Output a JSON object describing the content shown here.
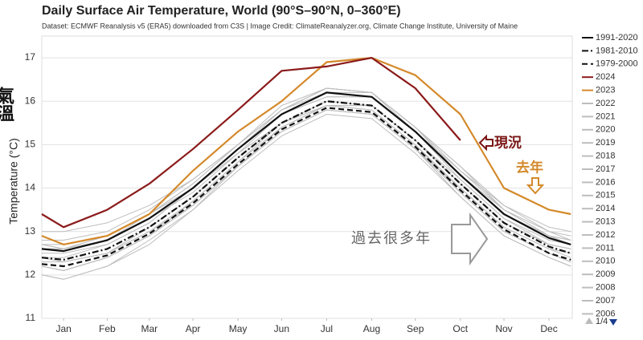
{
  "chart_data": {
    "type": "line",
    "title": "Daily Surface Air Temperature, World (90°S–90°N, 0–360°E)",
    "subtitle": "Dataset: ECMWF Reanalysis v5 (ERA5) downloaded from C3S | Image Credit: ClimateReanalyzer.org, Climate Change Institute, University of Maine",
    "y_label": "Temperature (°C)",
    "side_label": "氣溫",
    "annotations": [
      "現況",
      "去年",
      "過去很多年"
    ],
    "legend_page": "1/4",
    "legend": "right",
    "grid": true,
    "xlim": [
      1,
      366
    ],
    "xticks": [
      {
        "value": 16,
        "label": "Jan"
      },
      {
        "value": 46,
        "label": "Feb"
      },
      {
        "value": 75,
        "label": "Mar"
      },
      {
        "value": 105,
        "label": "Apr"
      },
      {
        "value": 136,
        "label": "May"
      },
      {
        "value": 166,
        "label": "Jun"
      },
      {
        "value": 197,
        "label": "Jul"
      },
      {
        "value": 228,
        "label": "Aug"
      },
      {
        "value": 258,
        "label": "Sep"
      },
      {
        "value": 289,
        "label": "Oct"
      },
      {
        "value": 319,
        "label": "Nov"
      },
      {
        "value": 350,
        "label": "Dec"
      }
    ],
    "ylim": [
      11,
      17.5
    ],
    "yticks": [
      11,
      12,
      13,
      14,
      15,
      16,
      17
    ],
    "x": [
      1,
      16,
      46,
      75,
      105,
      136,
      166,
      197,
      228,
      258,
      289,
      319,
      350,
      365
    ],
    "series": [
      {
        "name": "1991-2020",
        "color": "#111111",
        "dash": "solid",
        "values": [
          12.6,
          12.55,
          12.8,
          13.3,
          14.0,
          14.9,
          15.7,
          16.2,
          16.1,
          15.3,
          14.3,
          13.4,
          12.85,
          12.7
        ]
      },
      {
        "name": "1981-2010",
        "color": "#111111",
        "dash": "dashdot",
        "values": [
          12.4,
          12.35,
          12.6,
          13.1,
          13.8,
          14.7,
          15.5,
          16.0,
          15.9,
          15.1,
          14.1,
          13.2,
          12.65,
          12.5
        ]
      },
      {
        "name": "1979-2000",
        "color": "#111111",
        "dash": "dashed",
        "values": [
          12.25,
          12.2,
          12.45,
          12.95,
          13.65,
          14.55,
          15.35,
          15.85,
          15.75,
          14.95,
          13.95,
          13.05,
          12.5,
          12.35
        ]
      },
      {
        "name": "2024",
        "color": "#8b1a1a",
        "dash": "solid",
        "values": [
          13.4,
          13.1,
          13.5,
          14.1,
          14.9,
          15.8,
          16.7,
          16.8,
          17.0,
          16.3,
          15.1,
          null,
          null,
          null
        ]
      },
      {
        "name": "2023",
        "color": "#d4892a",
        "dash": "solid",
        "values": [
          12.9,
          12.7,
          12.9,
          13.4,
          14.4,
          15.3,
          16.0,
          16.9,
          17.0,
          16.6,
          15.7,
          14.0,
          13.5,
          13.4
        ]
      },
      {
        "name": "2022",
        "color": "#bdbdbd",
        "dash": "solid",
        "values": [
          12.7,
          12.6,
          12.9,
          13.4,
          14.1,
          15.0,
          15.8,
          16.3,
          16.2,
          15.4,
          14.4,
          13.5,
          12.9,
          12.8
        ]
      },
      {
        "name": "2021",
        "color": "#bdbdbd",
        "dash": "solid",
        "values": [
          12.6,
          12.6,
          12.8,
          13.4,
          14.0,
          14.9,
          15.8,
          16.2,
          16.2,
          15.4,
          14.3,
          13.5,
          12.9,
          12.7
        ]
      },
      {
        "name": "2020",
        "color": "#bdbdbd",
        "dash": "solid",
        "values": [
          12.8,
          12.8,
          13.0,
          13.5,
          14.2,
          15.0,
          15.8,
          16.3,
          16.2,
          15.4,
          14.5,
          13.6,
          13.0,
          12.8
        ]
      },
      {
        "name": "2019",
        "color": "#bdbdbd",
        "dash": "solid",
        "values": [
          12.7,
          12.7,
          12.9,
          13.4,
          14.1,
          15.0,
          15.9,
          16.3,
          16.2,
          15.4,
          14.5,
          13.5,
          13.0,
          12.9
        ]
      },
      {
        "name": "2018",
        "color": "#bdbdbd",
        "dash": "solid",
        "values": [
          12.5,
          12.5,
          12.7,
          13.2,
          14.0,
          14.8,
          15.7,
          16.1,
          16.1,
          15.3,
          14.2,
          13.3,
          12.8,
          12.7
        ]
      },
      {
        "name": "2017",
        "color": "#bdbdbd",
        "dash": "solid",
        "values": [
          12.7,
          12.6,
          12.9,
          13.4,
          14.0,
          14.9,
          15.7,
          16.2,
          16.1,
          15.3,
          14.3,
          13.4,
          12.9,
          12.7
        ]
      },
      {
        "name": "2016",
        "color": "#bdbdbd",
        "dash": "solid",
        "values": [
          13.0,
          13.0,
          13.2,
          13.6,
          14.2,
          15.0,
          15.8,
          16.3,
          16.2,
          15.3,
          14.3,
          13.4,
          12.9,
          12.8
        ]
      },
      {
        "name": "2015",
        "color": "#bdbdbd",
        "dash": "solid",
        "values": [
          12.4,
          12.4,
          12.7,
          13.2,
          14.0,
          14.9,
          15.7,
          16.1,
          16.1,
          15.3,
          14.4,
          13.6,
          13.1,
          13.0
        ]
      },
      {
        "name": "2014",
        "color": "#bdbdbd",
        "dash": "solid",
        "values": [
          12.4,
          12.3,
          12.5,
          13.1,
          13.8,
          14.7,
          15.5,
          16.0,
          15.9,
          15.1,
          14.2,
          13.3,
          12.7,
          12.6
        ]
      },
      {
        "name": "2013",
        "color": "#bdbdbd",
        "dash": "solid",
        "values": [
          12.4,
          12.3,
          12.5,
          13.0,
          13.7,
          14.6,
          15.5,
          15.9,
          15.9,
          15.1,
          14.1,
          13.2,
          12.7,
          12.6
        ]
      },
      {
        "name": "2012",
        "color": "#bdbdbd",
        "dash": "solid",
        "values": [
          12.2,
          12.1,
          12.4,
          12.9,
          13.7,
          14.6,
          15.4,
          15.9,
          15.8,
          15.0,
          14.0,
          13.1,
          12.6,
          12.4
        ]
      },
      {
        "name": "2011",
        "color": "#bdbdbd",
        "dash": "solid",
        "values": [
          12.2,
          12.1,
          12.4,
          12.9,
          13.6,
          14.5,
          15.3,
          15.8,
          15.7,
          14.9,
          13.9,
          13.0,
          12.5,
          12.3
        ]
      },
      {
        "name": "2010",
        "color": "#bdbdbd",
        "dash": "solid",
        "values": [
          12.6,
          12.6,
          12.8,
          13.3,
          13.9,
          14.8,
          15.5,
          15.9,
          15.8,
          15.0,
          13.9,
          13.0,
          12.5,
          12.3
        ]
      },
      {
        "name": "2009",
        "color": "#bdbdbd",
        "dash": "solid",
        "values": [
          12.2,
          12.1,
          12.4,
          12.9,
          13.6,
          14.5,
          15.4,
          15.9,
          15.9,
          15.1,
          14.1,
          13.2,
          12.7,
          12.6
        ]
      },
      {
        "name": "2008",
        "color": "#bdbdbd",
        "dash": "solid",
        "values": [
          12.0,
          11.9,
          12.2,
          12.7,
          13.5,
          14.4,
          15.2,
          15.7,
          15.6,
          14.8,
          13.8,
          12.9,
          12.4,
          12.2
        ]
      },
      {
        "name": "2007",
        "color": "#bdbdbd",
        "dash": "solid",
        "values": [
          12.3,
          12.3,
          12.5,
          13.0,
          13.6,
          14.5,
          15.3,
          15.8,
          15.7,
          14.9,
          13.8,
          12.9,
          12.4,
          12.2
        ]
      },
      {
        "name": "2006",
        "color": "#bdbdbd",
        "dash": "solid",
        "values": [
          12.0,
          11.9,
          12.2,
          12.8,
          13.5,
          14.5,
          15.3,
          15.8,
          15.7,
          14.9,
          14.0,
          13.1,
          12.6,
          12.5
        ]
      }
    ]
  }
}
